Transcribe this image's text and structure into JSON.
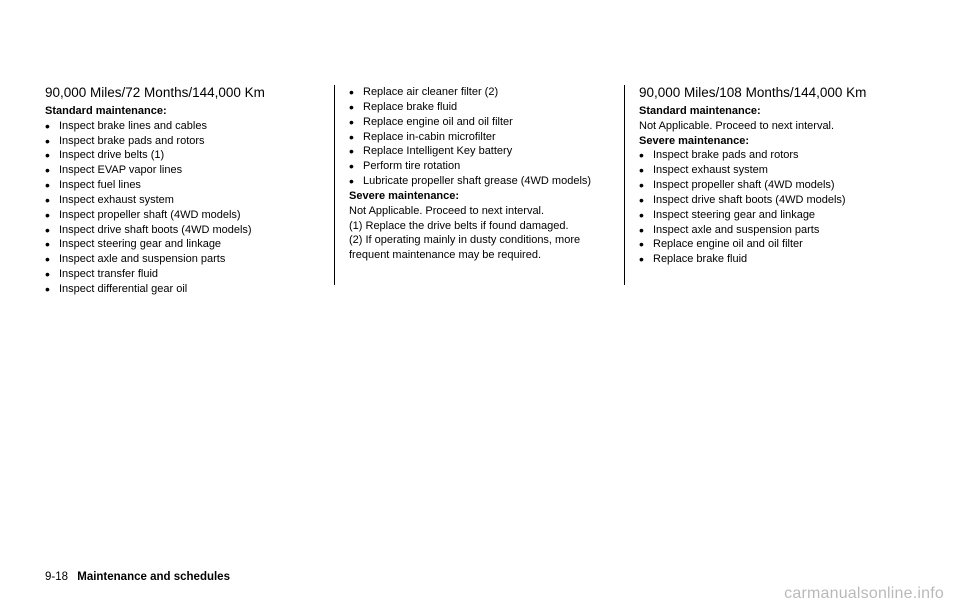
{
  "col1": {
    "heading": "90,000 Miles/72 Months/144,000 Km",
    "subhead": "Standard maintenance:",
    "items": [
      "Inspect brake lines and cables",
      "Inspect brake pads and rotors",
      "Inspect drive belts (1)",
      "Inspect EVAP vapor lines",
      "Inspect fuel lines",
      "Inspect exhaust system",
      "Inspect propeller shaft (4WD models)",
      "Inspect drive shaft boots (4WD models)",
      "Inspect steering gear and linkage",
      "Inspect axle and suspension parts",
      "Inspect transfer fluid",
      "Inspect differential gear oil"
    ]
  },
  "col2": {
    "items": [
      "Replace air cleaner filter (2)",
      "Replace brake fluid",
      "Replace engine oil and oil filter",
      "Replace in-cabin microfilter",
      "Replace Intelligent Key battery",
      "Perform tire rotation",
      "Lubricate propeller shaft grease (4WD models)"
    ],
    "subhead": "Severe maintenance:",
    "note1": "Not Applicable. Proceed to next interval.",
    "note2": "(1) Replace the drive belts if found damaged.",
    "note3": "(2) If operating mainly in dusty conditions, more frequent maintenance may be required."
  },
  "col3": {
    "heading": "90,000 Miles/108 Months/144,000 Km",
    "subhead1": "Standard maintenance:",
    "note1": "Not Applicable. Proceed to next interval.",
    "subhead2": "Severe maintenance:",
    "items": [
      "Inspect brake pads and rotors",
      "Inspect exhaust system",
      "Inspect propeller shaft (4WD models)",
      "Inspect drive shaft boots (4WD models)",
      "Inspect steering gear and linkage",
      "Inspect axle and suspension parts",
      "Replace engine oil and oil filter",
      "Replace brake fluid"
    ]
  },
  "footer": {
    "page": "9-18",
    "title": "Maintenance and schedules"
  },
  "watermark": "carmanualsonline.info"
}
